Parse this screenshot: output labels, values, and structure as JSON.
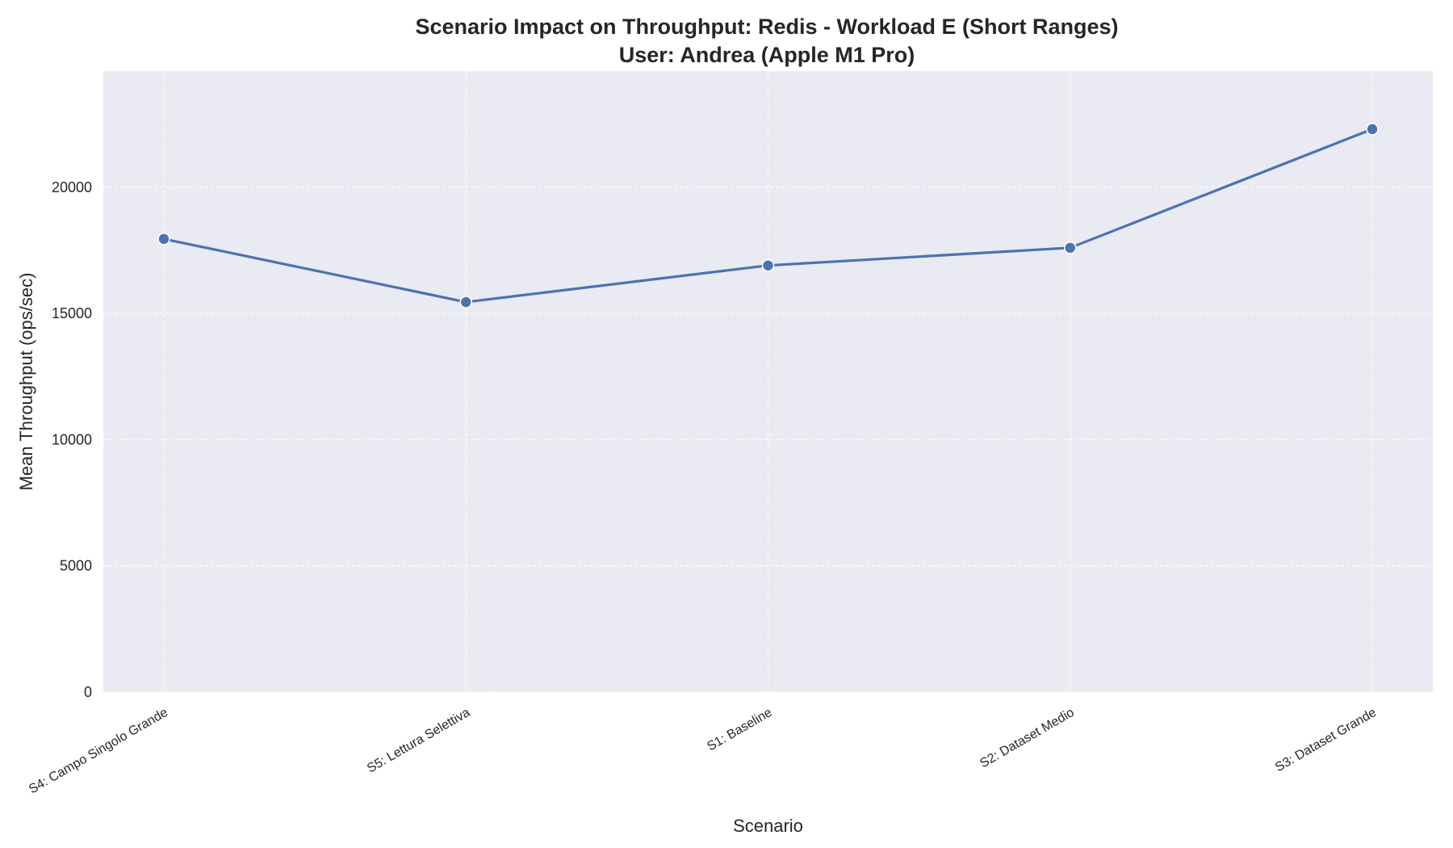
{
  "chart_data": {
    "type": "line",
    "title": "Scenario Impact on Throughput: Redis - Workload E (Short Ranges)",
    "subtitle": "User: Andrea (Apple M1 Pro)",
    "xlabel": "Scenario",
    "ylabel": "Mean Throughput (ops/sec)",
    "categories": [
      "S4: Campo Singolo Grande",
      "S5: Lettura Selettiva",
      "S1: Baseline",
      "S2: Dataset Medio",
      "S3: Dataset Grande"
    ],
    "series": [
      {
        "values": [
          17950,
          15450,
          16900,
          17600,
          22300
        ],
        "color": "#4c72b0"
      }
    ],
    "ylim": [
      0,
      24600
    ],
    "yticks": [
      0,
      5000,
      10000,
      15000,
      20000
    ],
    "grid": true,
    "plot_background": "#eaeaf2",
    "x_tick_rotation": -30
  }
}
